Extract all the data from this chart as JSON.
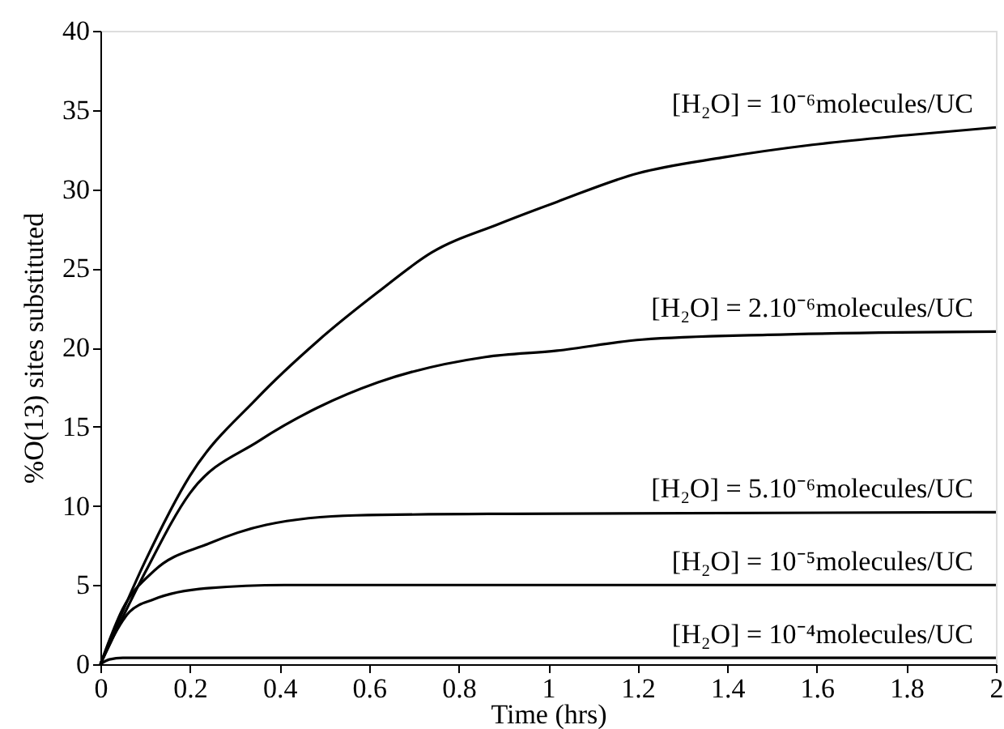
{
  "chart_data": {
    "type": "line",
    "xlabel": "Time (hrs)",
    "ylabel": "%O(13) sites substituted",
    "xlim": [
      0,
      2
    ],
    "ylim": [
      0,
      40
    ],
    "xticks": [
      0,
      0.2,
      0.4,
      0.6,
      0.8,
      1,
      1.2,
      1.4,
      1.6,
      1.8,
      2
    ],
    "yticks": [
      0,
      5,
      10,
      15,
      20,
      25,
      30,
      35,
      40
    ],
    "grid": false,
    "marker": "none",
    "line_style": "solid",
    "series": [
      {
        "name": "[H₂O] = 10⁻⁶molecules/UC",
        "color": "#000000",
        "x": [
          0,
          0.1,
          0.2,
          0.35,
          0.485,
          0.62,
          0.74,
          0.89,
          1.02,
          1.2,
          1.39,
          1.59,
          1.8,
          2.0
        ],
        "values": [
          0,
          6.5,
          11.9,
          16.8,
          20.4,
          23.5,
          26.0,
          27.8,
          29.2,
          31.0,
          32.0,
          32.8,
          33.4,
          33.9
        ]
      },
      {
        "name": "[H₂O] = 2.10⁻⁶molecules/UC",
        "color": "#000000",
        "x": [
          0,
          0.1,
          0.2,
          0.354,
          0.485,
          0.62,
          0.86,
          1.02,
          1.21,
          1.49,
          2.0
        ],
        "values": [
          0,
          5.8,
          10.8,
          14.1,
          16.2,
          17.8,
          19.4,
          19.8,
          20.5,
          20.8,
          21.0
        ]
      },
      {
        "name": "[H₂O] = 5.10⁻⁶molecules/UC",
        "color": "#000000",
        "x": [
          0,
          0.05,
          0.12,
          0.24,
          0.37,
          0.57,
          0.92,
          2.0
        ],
        "values": [
          0,
          3.5,
          5.9,
          7.6,
          8.8,
          9.4,
          9.5,
          9.6
        ]
      },
      {
        "name": "[H₂O] = 10⁻⁵molecules/UC",
        "color": "#000000",
        "x": [
          0,
          0.03,
          0.065,
          0.12,
          0.24,
          0.41,
          2.0
        ],
        "values": [
          0,
          1.8,
          3.3,
          4.1,
          4.8,
          5.0,
          5.0
        ]
      },
      {
        "name": "[H₂O] = 10⁻⁴molecules/UC",
        "color": "#000000",
        "x": [
          0,
          0.02,
          0.05,
          2.0
        ],
        "values": [
          0,
          0.3,
          0.4,
          0.4
        ]
      }
    ]
  }
}
